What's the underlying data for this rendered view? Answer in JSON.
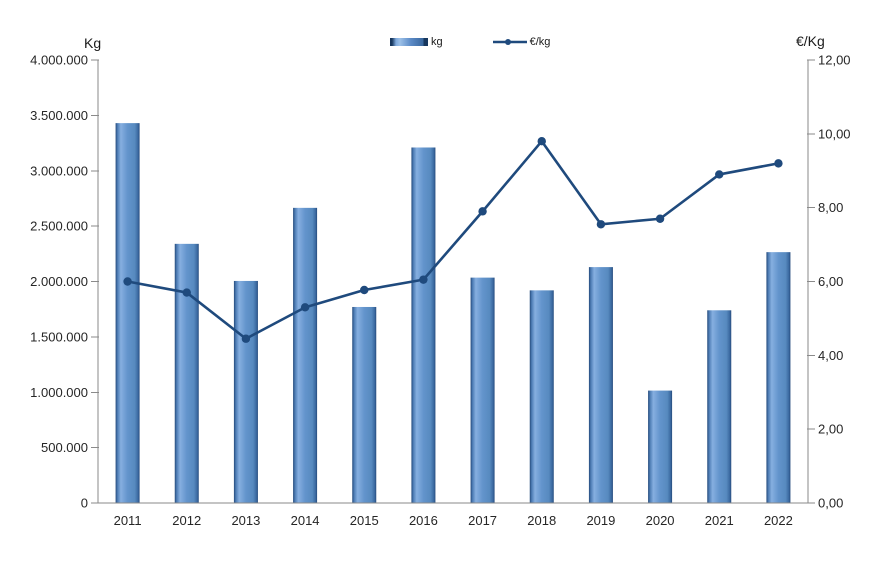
{
  "chart_data": {
    "type": "combo-bar-line",
    "title": "",
    "categories": [
      "2011",
      "2012",
      "2013",
      "2014",
      "2015",
      "2016",
      "2017",
      "2018",
      "2019",
      "2020",
      "2021",
      "2022"
    ],
    "series": [
      {
        "name": "kg",
        "type": "bar",
        "axis": "left",
        "values": [
          3430000,
          2340000,
          2005000,
          2665000,
          1770000,
          3210000,
          2035000,
          1920000,
          2130000,
          1015000,
          1740000,
          2265000
        ]
      },
      {
        "name": "€/kg",
        "type": "line",
        "axis": "right",
        "values": [
          6.0,
          5.7,
          4.45,
          5.3,
          5.77,
          6.05,
          7.9,
          9.8,
          7.55,
          7.7,
          8.9,
          9.2
        ]
      }
    ],
    "left_axis": {
      "title": "Kg",
      "min": 0,
      "max": 4000000,
      "step": 500000,
      "tick_labels": [
        "0",
        "500.000",
        "1.000.000",
        "1.500.000",
        "2.000.000",
        "2.500.000",
        "3.000.000",
        "3.500.000",
        "4.000.000"
      ]
    },
    "right_axis": {
      "title": "€/Kg",
      "min": 0,
      "max": 12,
      "step": 2,
      "tick_labels": [
        "0,00",
        "2,00",
        "4,00",
        "6,00",
        "8,00",
        "10,00",
        "12,00"
      ]
    },
    "legend": {
      "position": "top-center",
      "items": [
        {
          "label": "kg",
          "marker": "bar-swatch"
        },
        {
          "label": "€/kg",
          "marker": "line-marker-swatch"
        }
      ]
    },
    "grid": false,
    "colors": {
      "bar_fill": "#5b8ac6",
      "bar_gradient": [
        "#24497a",
        "#4d7cb4",
        "#86afe0",
        "#6394cc",
        "#578abf",
        "#3a689f",
        "#24497a"
      ],
      "line": "#1f4a7d",
      "axis_line": "#8a8a8a",
      "text": "#262626"
    }
  }
}
